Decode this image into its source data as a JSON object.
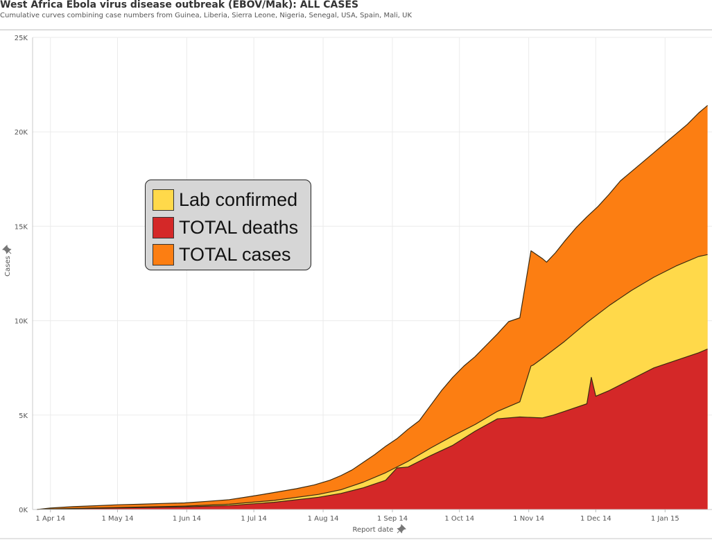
{
  "header": {
    "title": "West Africa Ebola virus disease outbreak (EBOV/Mak): ALL CASES",
    "subtitle": "Cumulative curves combining case numbers from Guinea, Liberia, Sierra Leone, Nigeria, Senegal, USA, Spain, Mali, UK"
  },
  "colors": {
    "total_cases": "#fc7e12",
    "lab_confirmed": "#ffd94a",
    "total_deaths": "#d42828",
    "grid": "#ebebeb",
    "outline": "#3a2a10"
  },
  "icons": {
    "pin": "pin-icon"
  },
  "chart_data": {
    "type": "area",
    "title": "West Africa Ebola virus disease outbreak (EBOV/Mak): ALL CASES",
    "subtitle": "Cumulative curves combining case numbers from Guinea, Liberia, Sierra Leone, Nigeria, Senegal, USA, Spain, Mali, UK",
    "xlabel": "Report date",
    "ylabel": "Cases",
    "x_unit": "days since 1 Apr 14",
    "xlim": [
      -8,
      296
    ],
    "ylim": [
      0,
      25000
    ],
    "yticks": [
      0,
      5000,
      10000,
      15000,
      20000,
      25000
    ],
    "ytick_labels": [
      "0K",
      "5K",
      "10K",
      "15K",
      "20K",
      "25K"
    ],
    "xticks": [
      0,
      30,
      61,
      91,
      122,
      153,
      183,
      214,
      244,
      275
    ],
    "xtick_labels": [
      "1 Apr 14",
      "1 May 14",
      "1 Jun 14",
      "1 Jul 14",
      "1 Aug 14",
      "1 Sep 14",
      "1 Oct 14",
      "1 Nov 14",
      "1 Dec 14",
      "1 Jan 15"
    ],
    "grid": true,
    "legend_position": "center-left",
    "series": [
      {
        "name": "TOTAL cases",
        "color": "#fc7e12",
        "x": [
          -6,
          0,
          10,
          20,
          30,
          40,
          50,
          60,
          70,
          80,
          90,
          100,
          110,
          118,
          125,
          130,
          135,
          140,
          145,
          150,
          155,
          160,
          165,
          170,
          175,
          180,
          185,
          190,
          195,
          200,
          205,
          210,
          215,
          220,
          222,
          226,
          230,
          235,
          240,
          245,
          250,
          255,
          260,
          265,
          270,
          275,
          280,
          285,
          290,
          294
        ],
        "y": [
          0,
          80,
          150,
          200,
          250,
          280,
          320,
          350,
          430,
          520,
          700,
          900,
          1100,
          1300,
          1550,
          1800,
          2100,
          2500,
          2900,
          3350,
          3750,
          4250,
          4700,
          5500,
          6300,
          7000,
          7600,
          8100,
          8700,
          9300,
          9950,
          10150,
          13700,
          13300,
          13100,
          13600,
          14200,
          14900,
          15500,
          16050,
          16700,
          17400,
          17900,
          18400,
          18900,
          19400,
          19900,
          20400,
          21000,
          21400
        ]
      },
      {
        "name": "Lab confirmed",
        "color": "#ffd94a",
        "x": [
          -6,
          0,
          20,
          40,
          60,
          80,
          100,
          120,
          130,
          140,
          150,
          160,
          165,
          170,
          180,
          190,
          200,
          210,
          215,
          216,
          220,
          230,
          240,
          250,
          260,
          270,
          280,
          290,
          294
        ],
        "y": [
          0,
          30,
          80,
          130,
          180,
          280,
          480,
          800,
          1050,
          1450,
          1950,
          2550,
          2900,
          3250,
          3900,
          4500,
          5200,
          5700,
          7600,
          7650,
          8000,
          8900,
          9900,
          10800,
          11600,
          12300,
          12900,
          13400,
          13500
        ]
      },
      {
        "name": "TOTAL deaths",
        "color": "#d42828",
        "x": [
          -6,
          0,
          20,
          40,
          60,
          80,
          100,
          120,
          130,
          140,
          150,
          155,
          160,
          170,
          180,
          190,
          200,
          210,
          220,
          225,
          230,
          240,
          242,
          244,
          250,
          260,
          270,
          280,
          290,
          294
        ],
        "y": [
          0,
          20,
          60,
          100,
          140,
          210,
          380,
          650,
          850,
          1150,
          1550,
          2200,
          2250,
          2850,
          3400,
          4150,
          4800,
          4900,
          4850,
          5000,
          5200,
          5600,
          7000,
          6000,
          6300,
          6900,
          7500,
          7900,
          8300,
          8500
        ]
      }
    ]
  }
}
